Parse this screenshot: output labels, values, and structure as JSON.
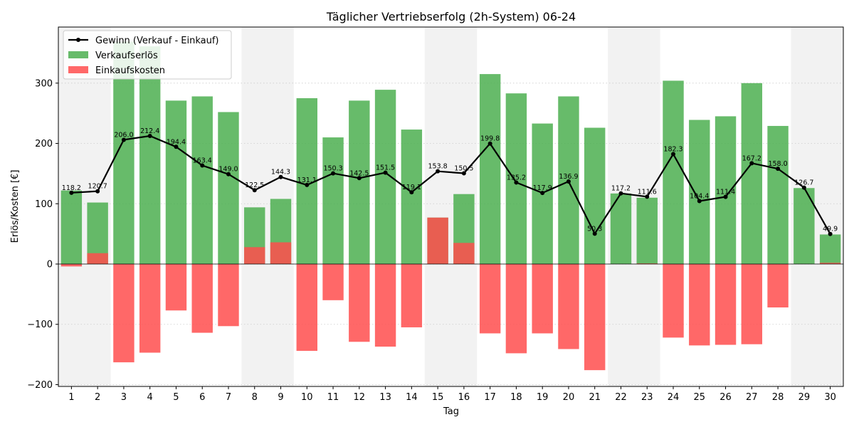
{
  "chart_data": {
    "type": "bar",
    "title": "Täglicher Vertriebserfolg (2h-System) 06-24",
    "xlabel": "Tag",
    "ylabel": "Erlös/Kosten [€]",
    "ylim": [
      -203,
      393
    ],
    "yticks": [
      -200,
      -100,
      0,
      100,
      200,
      300
    ],
    "grid": "y dotted",
    "legend_position": "top-left",
    "categories": [
      "1",
      "2",
      "3",
      "4",
      "5",
      "6",
      "7",
      "8",
      "9",
      "10",
      "11",
      "12",
      "13",
      "14",
      "15",
      "16",
      "17",
      "18",
      "19",
      "20",
      "21",
      "22",
      "23",
      "24",
      "25",
      "26",
      "27",
      "28",
      "29",
      "30"
    ],
    "weekend_days": [
      "1",
      "2",
      "8",
      "9",
      "15",
      "16",
      "22",
      "23",
      "29",
      "30"
    ],
    "series": [
      {
        "name": "Verkaufserlös",
        "type": "bar",
        "color": "#4CAF50",
        "values": [
          122,
          102,
          369,
          361,
          271,
          278,
          252,
          94,
          108,
          275,
          210,
          271,
          289,
          223,
          77,
          116,
          315,
          283,
          233,
          278,
          226,
          117,
          110,
          304,
          239,
          245,
          300,
          229,
          126,
          49
        ]
      },
      {
        "name": "Einkaufskosten",
        "type": "bar",
        "color": "#FF4D4D",
        "values": [
          -4,
          18,
          -163,
          -147,
          -77,
          -114,
          -103,
          28,
          36,
          -144,
          -60,
          -129,
          -137,
          -105,
          77,
          35,
          -115,
          -148,
          -115,
          -141,
          -176,
          0,
          1,
          -122,
          -135,
          -134,
          -133,
          -72,
          0,
          2
        ]
      },
      {
        "name": "Gewinn (Verkauf - Einkauf)",
        "type": "line",
        "color": "#000000",
        "values": [
          118.2,
          120.7,
          206.0,
          212.4,
          194.4,
          163.4,
          149.0,
          122.5,
          144.3,
          131.1,
          150.3,
          142.5,
          151.5,
          119.1,
          153.8,
          150.5,
          199.8,
          135.2,
          117.9,
          136.9,
          50.3,
          117.2,
          111.6,
          182.3,
          104.4,
          111.4,
          167.2,
          158.0,
          126.7,
          49.9
        ],
        "labels": [
          "118.2",
          "120.7",
          "206.0",
          "212.4",
          "194.4",
          "163.4",
          "149.0",
          "122.5",
          "144.3",
          "131.1",
          "150.3",
          "142.5",
          "151.5",
          "119.1",
          "153.8",
          "150.5",
          "199.8",
          "135.2",
          "117.9",
          "136.9",
          "50.3",
          "117.2",
          "111.6",
          "182.3",
          "104.4",
          "111.4",
          "167.2",
          "158.0",
          "126.7",
          "49.9"
        ]
      }
    ]
  }
}
